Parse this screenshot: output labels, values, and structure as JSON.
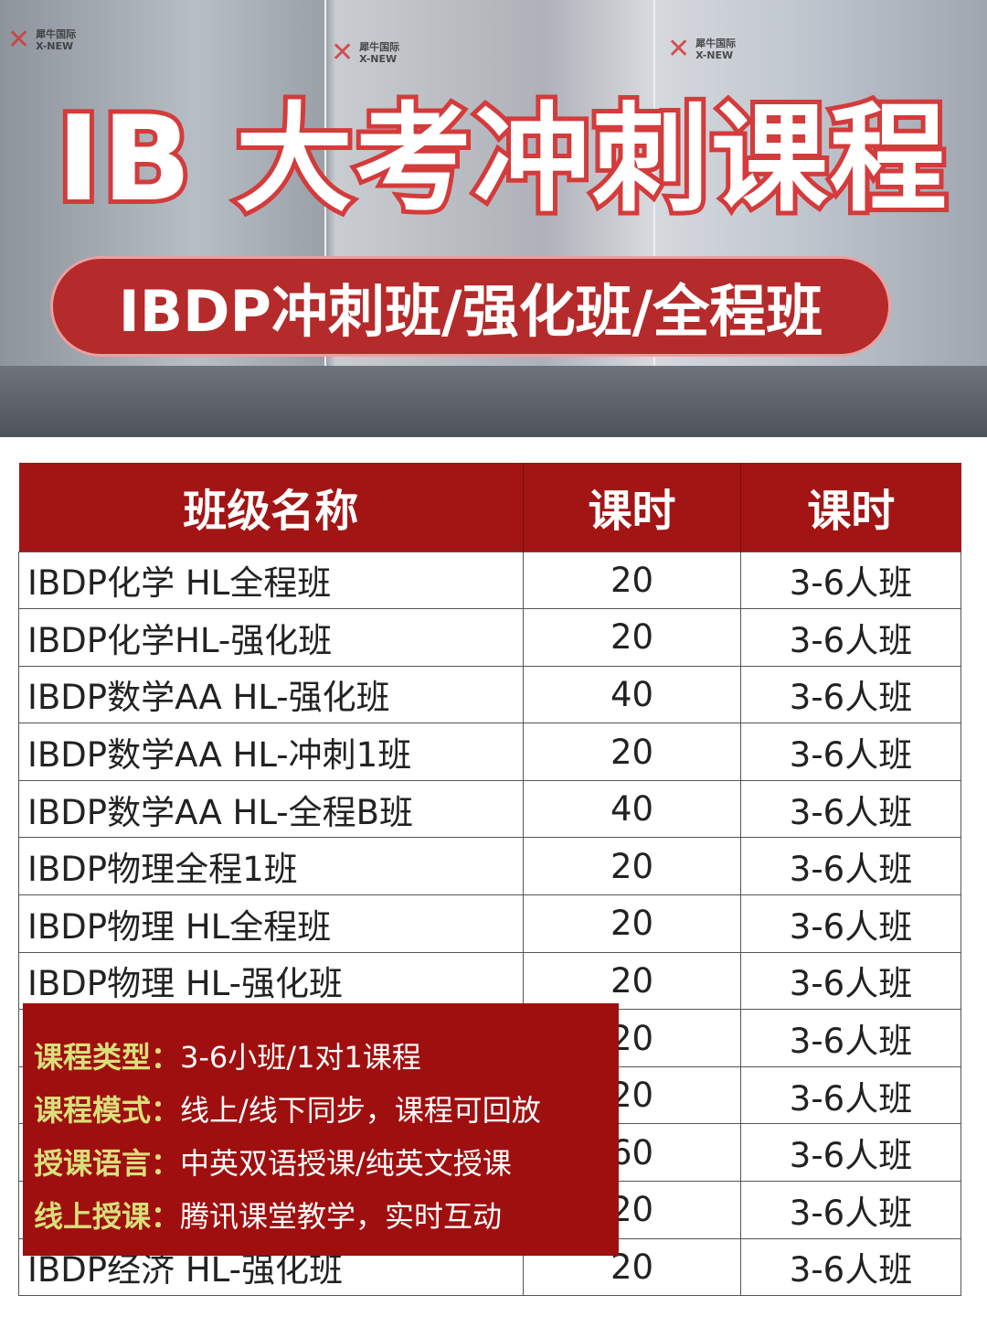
{
  "banner": {
    "logo_text": "犀牛国际",
    "logo_sub": "X-NEW",
    "title": "IB 大考冲刺课程",
    "subtitle": "IBDP冲刺班/强化班/全程班"
  },
  "table": {
    "headers": [
      "班级名称",
      "课时",
      "课时"
    ],
    "rows": [
      [
        "IBDP化学 HL全程班",
        "20",
        "3-6人班"
      ],
      [
        "IBDP化学HL-强化班",
        "20",
        "3-6人班"
      ],
      [
        "IBDP数学AA HL-强化班",
        "40",
        "3-6人班"
      ],
      [
        "IBDP数学AA HL-冲刺1班",
        "20",
        "3-6人班"
      ],
      [
        "IBDP数学AA HL-全程B班",
        "40",
        "3-6人班"
      ],
      [
        "IBDP物理全程1班",
        "20",
        "3-6人班"
      ],
      [
        "IBDP物理 HL全程班",
        "20",
        "3-6人班"
      ],
      [
        "IBDP物理 HL-强化班",
        "20",
        "3-6人班"
      ],
      [
        "",
        "20",
        "3-6人班"
      ],
      [
        "",
        "20",
        "3-6人班"
      ],
      [
        "",
        "60",
        "3-6人班"
      ],
      [
        "",
        "20",
        "3-6人班"
      ],
      [
        "IBDP经济 HL-强化班",
        "20",
        "3-6人班"
      ]
    ]
  },
  "info_box": {
    "items": [
      {
        "key": "课程类型：",
        "value": "3-6小班/1对1课程"
      },
      {
        "key": "课程模式：",
        "value": "线上/线下同步，课程可回放"
      },
      {
        "key": "授课语言：",
        "value": "中英双语授课/纯英文授课"
      },
      {
        "key": "线上授课：",
        "value": "腾讯课堂教学，实时互动"
      }
    ]
  },
  "colors": {
    "header_red": "#a31515",
    "overlay_red": "#a00f0f",
    "key_yellow": "#d9e07a",
    "title_outline": "#d43b3b"
  }
}
